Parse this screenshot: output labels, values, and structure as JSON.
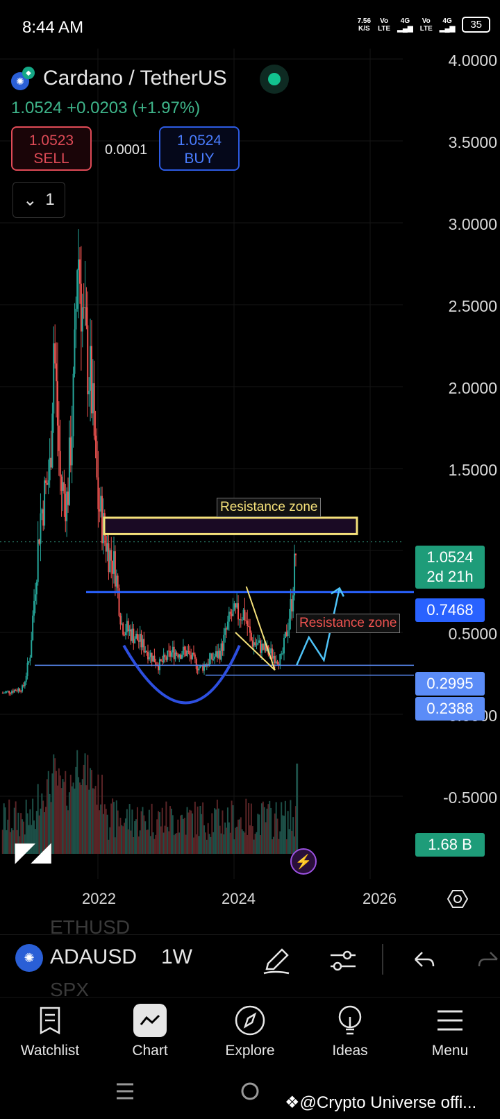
{
  "status_bar": {
    "time": "8:44 AM",
    "net_speed": "7.56",
    "net_unit": "K/S",
    "vo1": "Vo",
    "lte1": "LTE",
    "g1": "4G",
    "vo2": "Vo",
    "lte2": "LTE",
    "g2": "4G",
    "battery": "35"
  },
  "header": {
    "pair": "Cardano / TetherUS",
    "price": "1.0524",
    "change": "+0.0203",
    "change_pct": "(+1.97%)",
    "sell_price": "1.0523",
    "sell_label": "SELL",
    "buy_price": "1.0524",
    "buy_label": "BUY",
    "spread": "0.0001",
    "collapse_count": "1"
  },
  "price_axis": [
    "4.0000",
    "3.5000",
    "3.0000",
    "2.5000",
    "2.0000",
    "1.5000",
    "0.5000",
    "0.0000",
    "-0.5000"
  ],
  "price_tags": {
    "last_price": "1.0524",
    "countdown": "2d 21h",
    "level_1": "0.7468",
    "level_2": "0.2995",
    "level_3": "0.2388",
    "volume": "1.68 B"
  },
  "annotations": {
    "resistance_top": "Resistance zone",
    "resistance_mid": "Resistance zone"
  },
  "x_axis": [
    "2022",
    "2024",
    "2026"
  ],
  "toolbar": {
    "symbol": "ADAUSD",
    "interval": "1W",
    "ghost_above": "ETHUSD",
    "ghost_below": "SPX"
  },
  "nav": {
    "watchlist": "Watchlist",
    "chart": "Chart",
    "explore": "Explore",
    "ideas": "Ideas",
    "menu": "Menu"
  },
  "watermark": "@Crypto Universe offi...",
  "colors": {
    "up": "#26a69a",
    "down": "#ef5350",
    "accent": "#2962ff",
    "resistance": "#f5e17a"
  },
  "chart_data": {
    "type": "candlestick",
    "symbol": "ADAUSD",
    "interval": "1W",
    "x_ticks": [
      "2022",
      "2024",
      "2026"
    ],
    "y_ticks": [
      -0.5,
      0.0,
      0.5,
      1.5,
      2.0,
      2.5,
      3.0,
      3.5,
      4.0
    ],
    "ylim": [
      -0.85,
      4.2
    ],
    "price_path": [
      {
        "x": 2020.6,
        "y": 0.13
      },
      {
        "x": 2020.9,
        "y": 0.16
      },
      {
        "x": 2021.0,
        "y": 0.35
      },
      {
        "x": 2021.15,
        "y": 1.2
      },
      {
        "x": 2021.3,
        "y": 1.5
      },
      {
        "x": 2021.35,
        "y": 2.3
      },
      {
        "x": 2021.45,
        "y": 1.4
      },
      {
        "x": 2021.55,
        "y": 1.3
      },
      {
        "x": 2021.65,
        "y": 2.0
      },
      {
        "x": 2021.7,
        "y": 2.9
      },
      {
        "x": 2021.8,
        "y": 2.3
      },
      {
        "x": 2021.9,
        "y": 2.0
      },
      {
        "x": 2022.0,
        "y": 1.3
      },
      {
        "x": 2022.15,
        "y": 1.0
      },
      {
        "x": 2022.25,
        "y": 0.9
      },
      {
        "x": 2022.35,
        "y": 0.55
      },
      {
        "x": 2022.6,
        "y": 0.45
      },
      {
        "x": 2022.9,
        "y": 0.3
      },
      {
        "x": 2023.1,
        "y": 0.38
      },
      {
        "x": 2023.3,
        "y": 0.38
      },
      {
        "x": 2023.5,
        "y": 0.28
      },
      {
        "x": 2023.8,
        "y": 0.38
      },
      {
        "x": 2023.95,
        "y": 0.6
      },
      {
        "x": 2024.15,
        "y": 0.62
      },
      {
        "x": 2024.25,
        "y": 0.45
      },
      {
        "x": 2024.5,
        "y": 0.38
      },
      {
        "x": 2024.7,
        "y": 0.33
      },
      {
        "x": 2024.85,
        "y": 0.7
      },
      {
        "x": 2024.92,
        "y": 1.0524
      }
    ],
    "resistance_zone": [
      1.1,
      1.2
    ],
    "support_levels": [
      0.7468,
      0.2995,
      0.2388
    ],
    "projection": [
      {
        "x": 2024.92,
        "y": 0.3
      },
      {
        "x": 2025.1,
        "y": 0.47
      },
      {
        "x": 2025.32,
        "y": 0.33
      },
      {
        "x": 2025.55,
        "y": 0.77
      }
    ],
    "last_price": 1.0524,
    "last_volume": "1.68 B"
  }
}
